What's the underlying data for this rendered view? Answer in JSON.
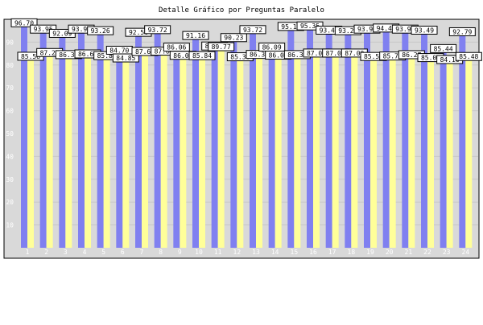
{
  "chart_data": {
    "type": "bar",
    "title": "Detalle Gráfico por Preguntas Paralelo",
    "xlabel": "",
    "ylabel": "",
    "ylim": [
      0,
      100
    ],
    "y_ticks": [
      10,
      20,
      30,
      40,
      50,
      60,
      70,
      80,
      90
    ],
    "grid": true,
    "legend": "none",
    "categories": [
      "1",
      "2",
      "3",
      "4",
      "5",
      "6",
      "7",
      "8",
      "9",
      "10",
      "11",
      "12",
      "13",
      "14",
      "15",
      "16",
      "17",
      "18",
      "19",
      "20",
      "21",
      "22",
      "23",
      "24"
    ],
    "series": [
      {
        "color": "#8080f0",
        "values": [
          96.7,
          93.95,
          92.09,
          93.95,
          93.26,
          84.7,
          92.56,
          93.72,
          86.06,
          91.16,
          86.55,
          90.23,
          93.72,
          86.09,
          95.12,
          95.35,
          93.49,
          93.26,
          93.95,
          94.42,
          93.95,
          93.49,
          85.44,
          92.79
        ]
      },
      {
        "color": "#ffff99",
        "values": [
          85.58,
          87.22,
          86.3,
          86.61,
          85.87,
          84.85,
          87.67,
          87.83,
          86.0,
          85.84,
          89.77,
          85.36,
          86.39,
          86.08,
          86.3,
          87.0,
          87.0,
          87.0,
          85.5,
          85.7,
          86.27,
          85.0,
          84.16,
          85.48
        ]
      }
    ]
  }
}
